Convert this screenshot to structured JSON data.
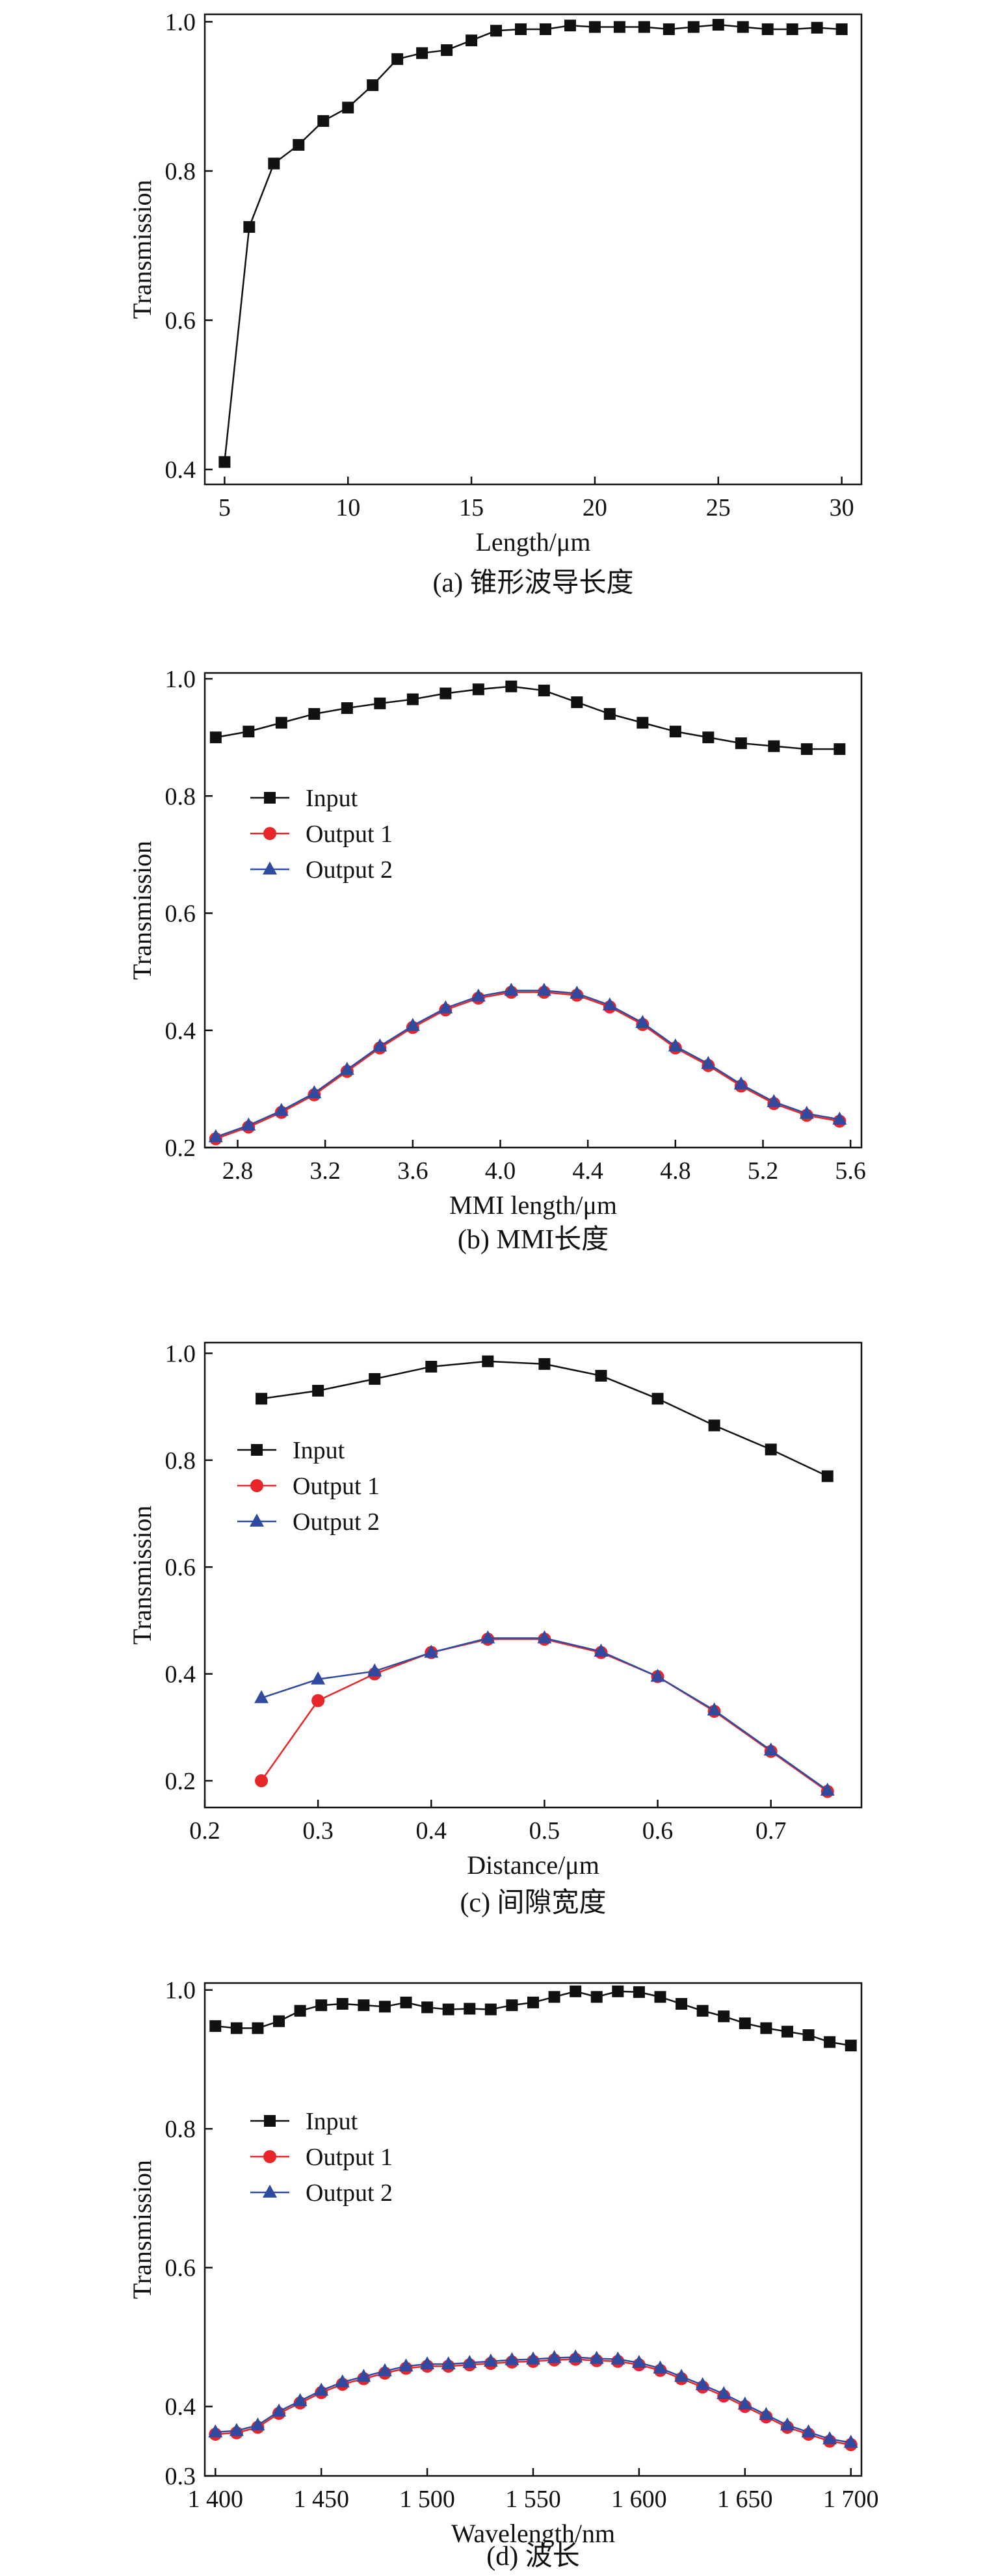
{
  "chart_data": [
    {
      "id": "a",
      "type": "line",
      "caption": "(a) 锥形波导长度",
      "xlabel": "Length/μm",
      "ylabel": "Transmission",
      "xlim": [
        4.2,
        30.8
      ],
      "ylim": [
        0.38,
        1.01
      ],
      "xticks": [
        5,
        10,
        15,
        20,
        25,
        30
      ],
      "yticks": [
        0.4,
        0.6,
        0.8,
        1.0
      ],
      "xtick_labels": [
        "5",
        "10",
        "15",
        "20",
        "25",
        "30"
      ],
      "ytick_labels": [
        "0.4",
        "0.6",
        "0.8",
        "1.0"
      ],
      "legend": false,
      "series": [
        {
          "name": "Transmission",
          "marker": "square",
          "color": "#111111",
          "x": [
            5,
            6,
            7,
            8,
            9,
            10,
            11,
            12,
            13,
            14,
            15,
            16,
            17,
            18,
            19,
            20,
            21,
            22,
            23,
            24,
            25,
            26,
            27,
            28,
            29,
            30
          ],
          "y": [
            0.41,
            0.725,
            0.81,
            0.835,
            0.867,
            0.885,
            0.915,
            0.95,
            0.958,
            0.962,
            0.975,
            0.988,
            0.99,
            0.99,
            0.995,
            0.993,
            0.993,
            0.993,
            0.99,
            0.993,
            0.996,
            0.993,
            0.99,
            0.99,
            0.992,
            0.99
          ]
        }
      ]
    },
    {
      "id": "b",
      "type": "line",
      "caption": "(b) MMI长度",
      "xlabel": "MMI length/μm",
      "ylabel": "Transmission",
      "xlim": [
        2.65,
        5.65
      ],
      "ylim": [
        0.2,
        1.01
      ],
      "xticks": [
        2.8,
        3.2,
        3.6,
        4.0,
        4.4,
        4.8,
        5.2,
        5.6
      ],
      "yticks": [
        0.2,
        0.4,
        0.6,
        0.8,
        1.0
      ],
      "xtick_labels": [
        "2.8",
        "3.2",
        "3.6",
        "4.0",
        "4.4",
        "4.8",
        "5.2",
        "5.6"
      ],
      "ytick_labels": [
        "0.2",
        "0.4",
        "0.6",
        "0.8",
        "1.0"
      ],
      "legend": true,
      "legend_position": "upper-left",
      "x": [
        2.7,
        2.85,
        3.0,
        3.15,
        3.3,
        3.45,
        3.6,
        3.75,
        3.9,
        4.05,
        4.2,
        4.35,
        4.5,
        4.65,
        4.8,
        4.95,
        5.1,
        5.25,
        5.4,
        5.55
      ],
      "series": [
        {
          "name": "Input",
          "marker": "square",
          "color": "#111111",
          "values": [
            0.9,
            0.91,
            0.925,
            0.94,
            0.95,
            0.958,
            0.965,
            0.975,
            0.982,
            0.987,
            0.98,
            0.96,
            0.94,
            0.925,
            0.91,
            0.9,
            0.89,
            0.885,
            0.88,
            0.88
          ]
        },
        {
          "name": "Output 1",
          "marker": "circle",
          "color": "#e8262a",
          "values": [
            0.215,
            0.235,
            0.26,
            0.29,
            0.33,
            0.37,
            0.405,
            0.435,
            0.455,
            0.465,
            0.465,
            0.46,
            0.44,
            0.41,
            0.37,
            0.34,
            0.305,
            0.275,
            0.255,
            0.245
          ]
        },
        {
          "name": "Output 2",
          "marker": "triangle",
          "color": "#2f4a9e",
          "values": [
            0.218,
            0.238,
            0.263,
            0.293,
            0.333,
            0.373,
            0.408,
            0.438,
            0.458,
            0.468,
            0.468,
            0.463,
            0.443,
            0.413,
            0.373,
            0.343,
            0.308,
            0.278,
            0.258,
            0.248
          ]
        }
      ]
    },
    {
      "id": "c",
      "type": "line",
      "caption": "(c) 间隙宽度",
      "xlabel": "Distance/μm",
      "ylabel": "Transmission",
      "xlim": [
        0.2,
        0.78
      ],
      "ylim": [
        0.15,
        1.02
      ],
      "xticks": [
        0.2,
        0.3,
        0.4,
        0.5,
        0.6,
        0.7
      ],
      "yticks": [
        0.2,
        0.4,
        0.6,
        0.8,
        1.0
      ],
      "xtick_labels": [
        "0.2",
        "0.3",
        "0.4",
        "0.5",
        "0.6",
        "0.7"
      ],
      "ytick_labels": [
        "0.2",
        "0.4",
        "0.6",
        "0.8",
        "1.0"
      ],
      "legend": true,
      "legend_position": "upper-left",
      "x": [
        0.25,
        0.3,
        0.35,
        0.4,
        0.45,
        0.5,
        0.55,
        0.6,
        0.65,
        0.7,
        0.75
      ],
      "series": [
        {
          "name": "Input",
          "marker": "square",
          "color": "#111111",
          "values": [
            0.915,
            0.93,
            0.952,
            0.975,
            0.985,
            0.98,
            0.958,
            0.915,
            0.865,
            0.82,
            0.77
          ]
        },
        {
          "name": "Output 1",
          "marker": "circle",
          "color": "#e8262a",
          "values": [
            0.2,
            0.35,
            0.4,
            0.44,
            0.465,
            0.465,
            0.44,
            0.395,
            0.33,
            0.255,
            0.18
          ]
        },
        {
          "name": "Output 2",
          "marker": "triangle",
          "color": "#2f4a9e",
          "values": [
            0.355,
            0.39,
            0.405,
            0.44,
            0.467,
            0.467,
            0.442,
            0.395,
            0.332,
            0.257,
            0.182
          ]
        }
      ]
    },
    {
      "id": "d",
      "type": "line",
      "caption": "(d) 波长",
      "xlabel": "Wavelength/nm",
      "ylabel": "Transmission",
      "xlim": [
        1395,
        1705
      ],
      "ylim": [
        0.3,
        1.01
      ],
      "xticks": [
        1400,
        1450,
        1500,
        1550,
        1600,
        1650,
        1700
      ],
      "yticks": [
        0.3,
        0.4,
        0.6,
        0.8,
        1.0
      ],
      "xtick_labels": [
        "1 400",
        "1 450",
        "1 500",
        "1 550",
        "1 600",
        "1 650",
        "1 700"
      ],
      "ytick_labels": [
        "0.3",
        "0.4",
        "0.6",
        "0.8",
        "1.0"
      ],
      "legend": true,
      "legend_position": "upper-left",
      "x": [
        1400,
        1410,
        1420,
        1430,
        1440,
        1450,
        1460,
        1470,
        1480,
        1490,
        1500,
        1510,
        1520,
        1530,
        1540,
        1550,
        1560,
        1570,
        1580,
        1590,
        1600,
        1610,
        1620,
        1630,
        1640,
        1650,
        1660,
        1670,
        1680,
        1690,
        1700
      ],
      "series": [
        {
          "name": "Input",
          "marker": "square",
          "color": "#111111",
          "values": [
            0.948,
            0.945,
            0.945,
            0.955,
            0.97,
            0.978,
            0.98,
            0.978,
            0.976,
            0.982,
            0.975,
            0.972,
            0.973,
            0.972,
            0.978,
            0.982,
            0.99,
            0.998,
            0.99,
            0.998,
            0.997,
            0.99,
            0.98,
            0.97,
            0.962,
            0.952,
            0.945,
            0.94,
            0.935,
            0.925,
            0.92
          ]
        },
        {
          "name": "Output 1",
          "marker": "circle",
          "color": "#e8262a",
          "values": [
            0.36,
            0.362,
            0.37,
            0.39,
            0.405,
            0.42,
            0.432,
            0.44,
            0.448,
            0.455,
            0.458,
            0.458,
            0.46,
            0.462,
            0.464,
            0.465,
            0.467,
            0.468,
            0.466,
            0.465,
            0.46,
            0.452,
            0.44,
            0.428,
            0.415,
            0.4,
            0.385,
            0.37,
            0.36,
            0.35,
            0.345
          ]
        },
        {
          "name": "Output 2",
          "marker": "triangle",
          "color": "#2f4a9e",
          "values": [
            0.363,
            0.365,
            0.373,
            0.393,
            0.408,
            0.423,
            0.435,
            0.443,
            0.451,
            0.458,
            0.461,
            0.461,
            0.463,
            0.465,
            0.467,
            0.468,
            0.47,
            0.471,
            0.469,
            0.468,
            0.463,
            0.455,
            0.443,
            0.431,
            0.418,
            0.403,
            0.388,
            0.373,
            0.363,
            0.353,
            0.348
          ]
        }
      ]
    }
  ]
}
